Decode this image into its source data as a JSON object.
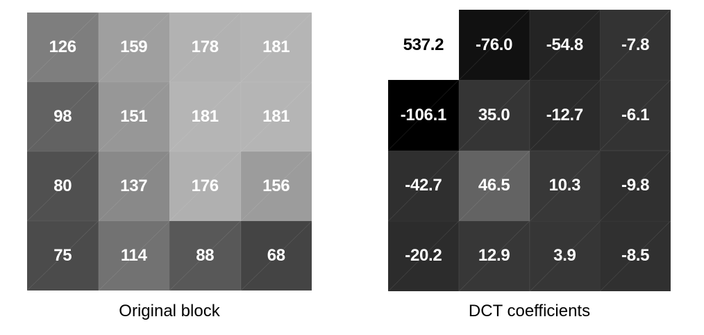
{
  "original_block": {
    "caption": "Original block",
    "values": [
      [
        126,
        159,
        178,
        181
      ],
      [
        98,
        151,
        181,
        181
      ],
      [
        80,
        137,
        176,
        156
      ],
      [
        75,
        114,
        88,
        68
      ]
    ]
  },
  "dct_coefficients": {
    "caption": "DCT coefficients",
    "values": [
      [
        "537.2",
        "-76.0",
        "-54.8",
        "-7.8"
      ],
      [
        "-106.1",
        "35.0",
        "-12.7",
        "-6.1"
      ],
      [
        "-42.7",
        "46.5",
        "10.3",
        "-9.8"
      ],
      [
        "-20.2",
        "12.9",
        "3.9",
        "-8.5"
      ]
    ],
    "shades": [
      [
        "#ffffff",
        "#111111",
        "#242424",
        "#333333"
      ],
      [
        "#000000",
        "#353535",
        "#2b2b2b",
        "#333333"
      ],
      [
        "#2f2f2f",
        "#636363",
        "#383838",
        "#303030"
      ],
      [
        "#2c2c2c",
        "#373737",
        "#363636",
        "#303030"
      ]
    ],
    "text_colors": [
      [
        "#000000",
        "#ffffff",
        "#ffffff",
        "#ffffff"
      ],
      [
        "#ffffff",
        "#ffffff",
        "#ffffff",
        "#ffffff"
      ],
      [
        "#ffffff",
        "#ffffff",
        "#ffffff",
        "#ffffff"
      ],
      [
        "#ffffff",
        "#ffffff",
        "#ffffff",
        "#ffffff"
      ]
    ]
  }
}
